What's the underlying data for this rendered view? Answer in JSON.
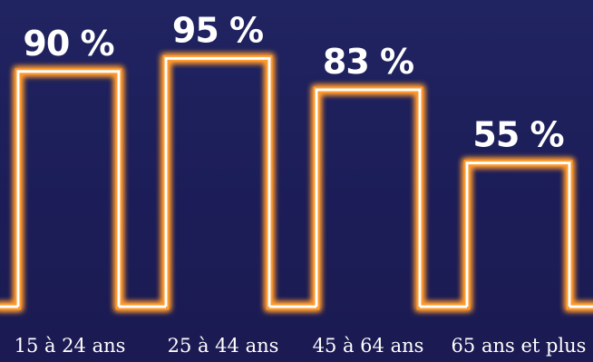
{
  "chart_data": {
    "type": "bar",
    "categories": [
      "15 à 24 ans",
      "25 à 44 ans",
      "45 à 64 ans",
      "65 ans et plus"
    ],
    "values": [
      90,
      95,
      83,
      55
    ],
    "data_labels": [
      "90 %",
      "95 %",
      "83 %",
      "55 %"
    ],
    "unit": "%",
    "ylim": [
      0,
      100
    ],
    "grid": false,
    "colors": {
      "background": "#1e2060",
      "bar_stroke": "#ffffff",
      "bar_glow": "#ff9a2e",
      "text": "#ffffff"
    }
  }
}
